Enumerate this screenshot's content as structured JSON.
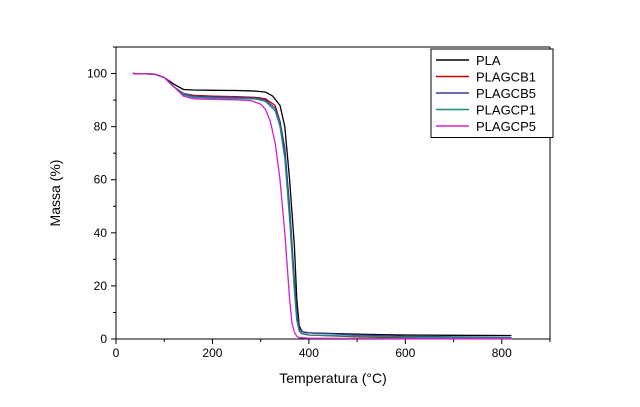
{
  "chart_data": {
    "type": "line",
    "title": "",
    "xlabel": "Temperatura (°C)",
    "ylabel": "Massa (%)",
    "xlim": [
      0,
      900
    ],
    "ylim": [
      0,
      110
    ],
    "xticks": [
      0,
      200,
      400,
      600,
      800
    ],
    "yticks": [
      0,
      20,
      40,
      60,
      80,
      100
    ],
    "grid": false,
    "legend_position": "top-right",
    "series": [
      {
        "name": "PLA",
        "color": "#000000",
        "x": [
          35,
          80,
          100,
          120,
          140,
          160,
          200,
          250,
          290,
          310,
          325,
          340,
          350,
          360,
          370,
          375,
          380,
          385,
          390,
          400,
          500,
          600,
          700,
          820
        ],
        "y": [
          100,
          99.8,
          98.5,
          96,
          94,
          93.8,
          93.7,
          93.6,
          93.4,
          93,
          91.5,
          88,
          80,
          60,
          35,
          15,
          5,
          3,
          2.5,
          2.3,
          1.8,
          1.5,
          1.4,
          1.3
        ]
      },
      {
        "name": "PLAGCB1",
        "color": "#c00000",
        "x": [
          35,
          80,
          100,
          120,
          140,
          160,
          200,
          250,
          290,
          310,
          330,
          340,
          350,
          360,
          370,
          375,
          380,
          385,
          400,
          500,
          600,
          700,
          820
        ],
        "y": [
          100,
          99.8,
          98.5,
          95,
          92.5,
          91.8,
          91.5,
          91.3,
          91,
          90.5,
          88,
          82,
          70,
          48,
          20,
          8,
          3,
          2,
          1.5,
          0.8,
          0.5,
          0.3,
          0.2
        ]
      },
      {
        "name": "PLAGCB5",
        "color": "#3c3c9c",
        "x": [
          35,
          80,
          100,
          120,
          140,
          160,
          200,
          250,
          290,
          310,
          330,
          340,
          350,
          360,
          370,
          375,
          380,
          385,
          400,
          500,
          600,
          700,
          820
        ],
        "y": [
          100,
          99.8,
          98.5,
          95,
          92.5,
          91.5,
          91.2,
          91,
          90.8,
          90,
          87,
          82,
          72,
          50,
          22,
          10,
          4,
          2.8,
          2.3,
          1.5,
          1,
          0.8,
          0.6
        ]
      },
      {
        "name": "PLAGCP1",
        "color": "#1e8a7a",
        "x": [
          35,
          80,
          100,
          120,
          140,
          160,
          200,
          250,
          290,
          310,
          330,
          340,
          350,
          360,
          370,
          375,
          380,
          385,
          400,
          500,
          600,
          700,
          820
        ],
        "y": [
          100,
          99.8,
          98.5,
          95,
          92,
          91,
          90.8,
          90.6,
          90.4,
          89.5,
          86,
          80,
          68,
          45,
          18,
          7,
          3,
          2,
          1.5,
          1,
          0.7,
          0.5,
          0.4
        ]
      },
      {
        "name": "PLAGCP5",
        "color": "#d020d0",
        "x": [
          35,
          80,
          100,
          120,
          140,
          160,
          200,
          250,
          280,
          300,
          310,
          320,
          330,
          340,
          350,
          360,
          365,
          370,
          375,
          380,
          400,
          500,
          600,
          700,
          820
        ],
        "y": [
          100,
          99.8,
          98.5,
          95,
          91.5,
          90.5,
          90.3,
          90.1,
          89.8,
          88.5,
          86.5,
          82,
          74,
          60,
          40,
          15,
          6,
          2.5,
          1,
          0.5,
          0.3,
          0.2,
          0.1,
          0.1,
          0.1
        ]
      }
    ]
  }
}
